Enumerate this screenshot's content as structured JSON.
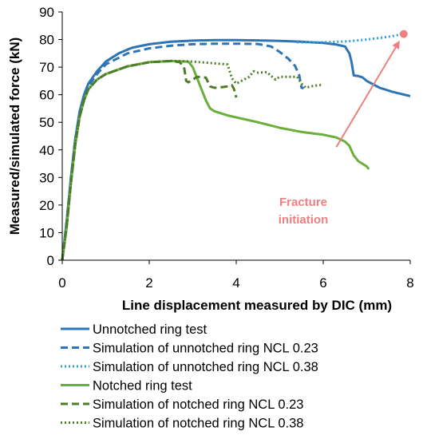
{
  "chart_data": {
    "type": "line",
    "xlabel": "Line displacement measured by DIC (mm)",
    "ylabel": "Measured/simulated  force (kN)",
    "xlim": [
      0,
      8
    ],
    "ylim": [
      0,
      90
    ],
    "xticks": [
      "0",
      "2",
      "4",
      "6",
      "8"
    ],
    "yticks": [
      "0",
      "10",
      "20",
      "30",
      "40",
      "50",
      "60",
      "70",
      "80",
      "90"
    ],
    "grid": false,
    "legend_position": "bottom",
    "series": [
      {
        "name": "Unnotched ring test",
        "color": "#2E75B6",
        "style": "solid",
        "x": [
          0,
          0.1,
          0.2,
          0.3,
          0.4,
          0.5,
          0.6,
          0.8,
          1.0,
          1.3,
          1.6,
          2.0,
          2.5,
          3.0,
          3.5,
          4.0,
          4.5,
          5.0,
          5.5,
          6.0,
          6.3,
          6.5,
          6.6,
          6.65,
          6.7,
          6.8,
          6.9,
          7.0,
          7.3,
          7.6,
          8.0
        ],
        "y": [
          0,
          14,
          30,
          44,
          54,
          60,
          64,
          68.5,
          72,
          75,
          77,
          78.3,
          79.2,
          79.6,
          79.8,
          79.8,
          79.7,
          79.5,
          79.2,
          78.8,
          78.2,
          77.5,
          75.0,
          72.0,
          67.0,
          66.8,
          66.3,
          65.0,
          62.5,
          61.0,
          59.5
        ]
      },
      {
        "name": "Simulation of unnotched ring NCL 0.23",
        "color": "#2E75B6",
        "style": "dashed",
        "x": [
          0,
          0.1,
          0.2,
          0.3,
          0.4,
          0.5,
          0.6,
          0.8,
          1.0,
          1.5,
          2.0,
          2.5,
          3.0,
          3.5,
          4.0,
          4.5,
          4.8,
          5.0,
          5.2,
          5.35,
          5.45,
          5.5,
          5.52,
          5.55
        ],
        "y": [
          0,
          14,
          30,
          44,
          53,
          59,
          63,
          67.5,
          71,
          75,
          76.8,
          77.8,
          78.3,
          78.5,
          78.5,
          78.4,
          77.5,
          75.5,
          73,
          70.5,
          67,
          62.5,
          62.5,
          62.3
        ]
      },
      {
        "name": "Simulation of unnotched ring NCL 0.38",
        "color": "#2E9ED6",
        "style": "dotted",
        "x": [
          5.4,
          6.0,
          6.5,
          7.0,
          7.5,
          7.85
        ],
        "y": [
          79.0,
          79.0,
          79.3,
          80.0,
          81.0,
          82.0
        ]
      },
      {
        "name": "Notched ring test",
        "color": "#6AAF3A",
        "style": "solid",
        "x": [
          0,
          0.1,
          0.2,
          0.3,
          0.4,
          0.5,
          0.6,
          0.8,
          1.0,
          1.5,
          2.0,
          2.5,
          2.9,
          3.0,
          3.1,
          3.2,
          3.3,
          3.4,
          3.5,
          3.8,
          4.5,
          5.0,
          5.5,
          6.0,
          6.3,
          6.5,
          6.6,
          6.7,
          6.8,
          6.9,
          7.0,
          7.05
        ],
        "y": [
          0,
          12,
          28,
          42,
          52,
          58,
          62,
          65.5,
          67.5,
          70.3,
          71.8,
          72.2,
          72.0,
          70.0,
          66.0,
          62.0,
          58.0,
          55.0,
          54.0,
          52.5,
          50.0,
          48.0,
          46.5,
          45.5,
          44.5,
          43.0,
          41.5,
          38.0,
          36.0,
          35.0,
          34.0,
          33.0
        ]
      },
      {
        "name": "Simulation of notched ring NCL 0.23",
        "color": "#4E7D28",
        "style": "dashed",
        "x": [
          0,
          0.1,
          0.2,
          0.3,
          0.4,
          0.5,
          0.6,
          0.8,
          1.0,
          1.5,
          2.0,
          2.5,
          2.7,
          2.8,
          2.85,
          2.9,
          3.1,
          3.3,
          3.4,
          3.5,
          3.6,
          3.7,
          3.8,
          3.9,
          3.95,
          4.0
        ],
        "y": [
          0,
          12,
          28,
          42,
          52,
          58,
          62,
          65.5,
          67.5,
          70.3,
          71.8,
          72.2,
          71.8,
          70.0,
          65.0,
          64.5,
          66.5,
          66.2,
          63.0,
          62.5,
          62.6,
          62.8,
          63.0,
          63.5,
          62.0,
          59.0
        ]
      },
      {
        "name": "Simulation of notched ring NCL 0.38",
        "color": "#4E7D28",
        "style": "dotted",
        "x": [
          0,
          0.1,
          0.2,
          0.3,
          0.4,
          0.5,
          0.6,
          0.8,
          1.0,
          1.5,
          2.0,
          2.5,
          3.0,
          3.4,
          3.8,
          3.9,
          4.0,
          4.3,
          4.4,
          4.5,
          4.7,
          4.9,
          5.0,
          5.2,
          5.4,
          5.5,
          5.6,
          5.7,
          5.9,
          6.0
        ],
        "y": [
          0,
          12,
          28,
          42,
          52,
          58,
          62,
          65.5,
          67.5,
          70.3,
          71.8,
          72.3,
          72.0,
          71.5,
          71.0,
          66.0,
          64.0,
          66.5,
          68.5,
          68.0,
          68.2,
          65.5,
          66.5,
          66.5,
          66.5,
          64.0,
          62.5,
          63.0,
          63.5,
          63.5
        ]
      }
    ],
    "annotation": {
      "text_line1": "Fracture",
      "text_line2": "initiation",
      "color": "#F08080",
      "point": {
        "x": 7.85,
        "y": 82
      },
      "arrow_from": {
        "x": 6.3,
        "y": 41
      }
    }
  }
}
